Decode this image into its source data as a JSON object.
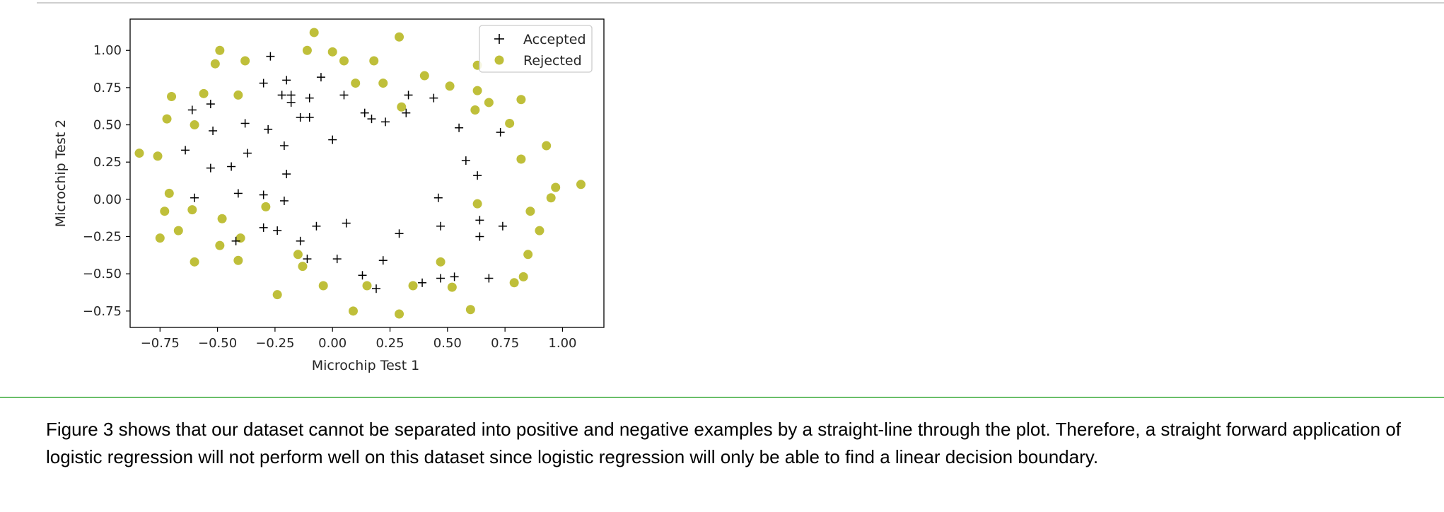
{
  "notebook": {
    "paragraph": "Figure 3 shows that our dataset cannot be separated into positive and negative examples by a straight-line through the plot. Therefore, a straight forward application of logistic regression will not perform well on this dataset since logistic regression will only be able to find a linear decision boundary."
  },
  "chart_data": {
    "type": "scatter",
    "title": "",
    "xlabel": "Microchip Test 1",
    "ylabel": "Microchip Test 2",
    "xlim": [
      -0.88,
      1.18
    ],
    "ylim": [
      -0.86,
      1.21
    ],
    "xticks": [
      -0.75,
      -0.5,
      -0.25,
      0.0,
      0.25,
      0.5,
      0.75,
      1.0
    ],
    "xtick_labels": [
      "−0.75",
      "−0.50",
      "−0.25",
      "0.00",
      "0.25",
      "0.50",
      "0.75",
      "1.00"
    ],
    "yticks": [
      -0.75,
      -0.5,
      -0.25,
      0.0,
      0.25,
      0.5,
      0.75,
      1.0
    ],
    "ytick_labels": [
      "−0.75",
      "−0.50",
      "−0.25",
      "0.00",
      "0.25",
      "0.50",
      "0.75",
      "1.00"
    ],
    "grid": false,
    "legend": "top-right",
    "series": [
      {
        "name": "Accepted",
        "marker": "plus",
        "color": "#000000",
        "points": [
          [
            -0.27,
            0.96
          ],
          [
            -0.3,
            0.78
          ],
          [
            -0.2,
            0.8
          ],
          [
            -0.05,
            0.82
          ],
          [
            -0.22,
            0.7
          ],
          [
            -0.18,
            0.7
          ],
          [
            -0.1,
            0.68
          ],
          [
            -0.18,
            0.65
          ],
          [
            -0.53,
            0.64
          ],
          [
            -0.61,
            0.6
          ],
          [
            0.05,
            0.7
          ],
          [
            0.33,
            0.7
          ],
          [
            0.44,
            0.68
          ],
          [
            -0.14,
            0.55
          ],
          [
            -0.1,
            0.55
          ],
          [
            0.14,
            0.58
          ],
          [
            0.17,
            0.54
          ],
          [
            0.23,
            0.52
          ],
          [
            0.32,
            0.58
          ],
          [
            -0.38,
            0.51
          ],
          [
            -0.52,
            0.46
          ],
          [
            -0.28,
            0.47
          ],
          [
            0.55,
            0.48
          ],
          [
            0.73,
            0.45
          ],
          [
            0.0,
            0.4
          ],
          [
            -0.21,
            0.36
          ],
          [
            -0.64,
            0.33
          ],
          [
            -0.37,
            0.31
          ],
          [
            0.58,
            0.26
          ],
          [
            -0.53,
            0.21
          ],
          [
            -0.44,
            0.22
          ],
          [
            -0.2,
            0.17
          ],
          [
            0.63,
            0.16
          ],
          [
            -0.41,
            0.04
          ],
          [
            -0.3,
            0.03
          ],
          [
            -0.6,
            0.01
          ],
          [
            -0.21,
            -0.01
          ],
          [
            0.46,
            0.01
          ],
          [
            -0.3,
            -0.19
          ],
          [
            -0.24,
            -0.21
          ],
          [
            -0.07,
            -0.18
          ],
          [
            0.06,
            -0.16
          ],
          [
            0.47,
            -0.18
          ],
          [
            0.64,
            -0.14
          ],
          [
            0.74,
            -0.18
          ],
          [
            0.29,
            -0.23
          ],
          [
            0.64,
            -0.25
          ],
          [
            -0.42,
            -0.28
          ],
          [
            -0.14,
            -0.28
          ],
          [
            -0.11,
            -0.4
          ],
          [
            0.02,
            -0.4
          ],
          [
            0.22,
            -0.41
          ],
          [
            0.13,
            -0.51
          ],
          [
            0.19,
            -0.6
          ],
          [
            0.39,
            -0.56
          ],
          [
            0.47,
            -0.53
          ],
          [
            0.53,
            -0.52
          ],
          [
            0.68,
            -0.53
          ]
        ]
      },
      {
        "name": "Rejected",
        "marker": "circle",
        "color": "#bfbf3a",
        "points": [
          [
            -0.08,
            1.12
          ],
          [
            0.29,
            1.09
          ],
          [
            -0.49,
            1.0
          ],
          [
            -0.11,
            1.0
          ],
          [
            0.0,
            0.99
          ],
          [
            -0.51,
            0.91
          ],
          [
            -0.38,
            0.93
          ],
          [
            0.05,
            0.93
          ],
          [
            0.18,
            0.93
          ],
          [
            0.63,
            0.9
          ],
          [
            0.4,
            0.83
          ],
          [
            0.1,
            0.78
          ],
          [
            0.22,
            0.78
          ],
          [
            0.51,
            0.76
          ],
          [
            0.63,
            0.73
          ],
          [
            -0.7,
            0.69
          ],
          [
            -0.56,
            0.71
          ],
          [
            -0.41,
            0.7
          ],
          [
            0.68,
            0.65
          ],
          [
            0.82,
            0.67
          ],
          [
            0.3,
            0.62
          ],
          [
            0.62,
            0.6
          ],
          [
            -0.72,
            0.54
          ],
          [
            -0.6,
            0.5
          ],
          [
            0.77,
            0.51
          ],
          [
            0.93,
            0.36
          ],
          [
            -0.84,
            0.31
          ],
          [
            -0.76,
            0.29
          ],
          [
            0.82,
            0.27
          ],
          [
            1.08,
            0.1
          ],
          [
            0.97,
            0.08
          ],
          [
            -0.71,
            0.04
          ],
          [
            0.95,
            0.01
          ],
          [
            0.63,
            -0.03
          ],
          [
            -0.61,
            -0.07
          ],
          [
            -0.73,
            -0.08
          ],
          [
            -0.29,
            -0.05
          ],
          [
            0.86,
            -0.08
          ],
          [
            -0.48,
            -0.13
          ],
          [
            -0.67,
            -0.21
          ],
          [
            0.9,
            -0.21
          ],
          [
            -0.75,
            -0.26
          ],
          [
            -0.4,
            -0.26
          ],
          [
            -0.49,
            -0.31
          ],
          [
            -0.15,
            -0.37
          ],
          [
            -0.13,
            -0.45
          ],
          [
            0.85,
            -0.37
          ],
          [
            -0.6,
            -0.42
          ],
          [
            -0.41,
            -0.41
          ],
          [
            0.47,
            -0.42
          ],
          [
            0.83,
            -0.52
          ],
          [
            0.79,
            -0.56
          ],
          [
            -0.04,
            -0.58
          ],
          [
            0.15,
            -0.58
          ],
          [
            0.35,
            -0.58
          ],
          [
            0.52,
            -0.59
          ],
          [
            -0.24,
            -0.64
          ],
          [
            0.09,
            -0.75
          ],
          [
            0.29,
            -0.77
          ],
          [
            0.6,
            -0.74
          ]
        ]
      }
    ]
  }
}
